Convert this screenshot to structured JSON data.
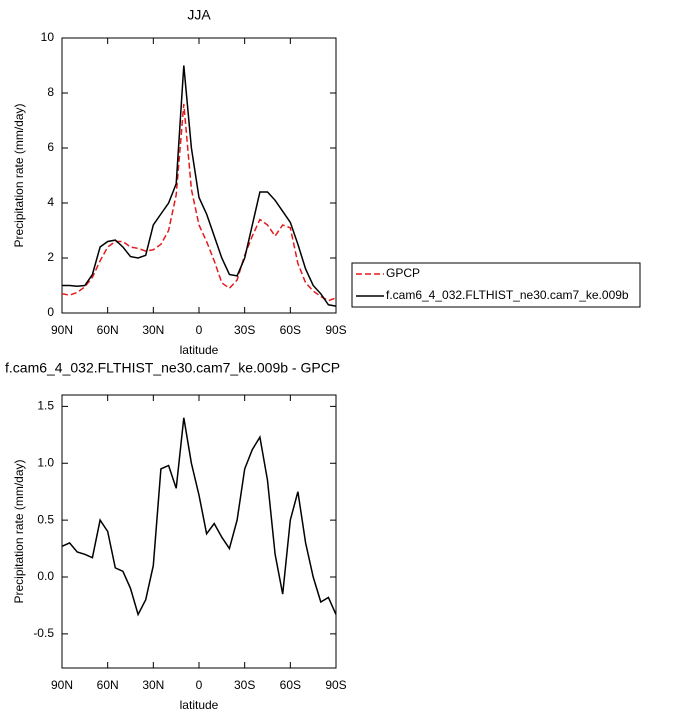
{
  "chart_data": [
    {
      "type": "line",
      "title": "JJA",
      "x_label": "latitude",
      "y_label": "Precipitation rate (mm/day)",
      "x": [
        90,
        85,
        80,
        75,
        70,
        65,
        60,
        55,
        50,
        45,
        40,
        35,
        30,
        25,
        20,
        15,
        10,
        5,
        0,
        -5,
        -10,
        -15,
        -20,
        -25,
        -30,
        -35,
        -40,
        -45,
        -50,
        -55,
        -60,
        -65,
        -70,
        -75,
        -80,
        -85,
        -90
      ],
      "xlim": [
        90,
        -90
      ],
      "xticks": [
        {
          "value": 90,
          "label": "90N"
        },
        {
          "value": 60,
          "label": "60N"
        },
        {
          "value": 30,
          "label": "30N"
        },
        0,
        {
          "value": -30,
          "label": "30S"
        },
        {
          "value": -60,
          "label": "60S"
        },
        {
          "value": -90,
          "label": "90S"
        }
      ],
      "ylim": [
        0,
        10
      ],
      "yticks": [
        0,
        2,
        4,
        6,
        8,
        10
      ],
      "legend": "right",
      "series": [
        {
          "name": "GPCP",
          "color": "#e41a1c",
          "style": "dashed",
          "values": [
            0.7,
            0.65,
            0.75,
            0.95,
            1.3,
            1.9,
            2.4,
            2.6,
            2.6,
            2.4,
            2.35,
            2.25,
            2.3,
            2.5,
            3.0,
            4.3,
            7.6,
            4.5,
            3.2,
            2.6,
            1.9,
            1.1,
            0.9,
            1.2,
            2.1,
            2.8,
            3.4,
            3.2,
            2.8,
            3.2,
            3.1,
            1.8,
            1.1,
            0.8,
            0.6,
            0.45,
            0.55
          ]
        },
        {
          "name": "f.cam6_4_032.FLTHIST_ne30.cam7_ke.009b",
          "color": "#000000",
          "style": "solid",
          "values": [
            1.0,
            1.0,
            0.97,
            1.0,
            1.4,
            2.4,
            2.6,
            2.65,
            2.4,
            2.05,
            2.0,
            2.1,
            3.2,
            3.6,
            4.0,
            4.7,
            9.0,
            6.0,
            4.2,
            3.6,
            2.8,
            2.0,
            1.4,
            1.35,
            2.0,
            3.2,
            4.4,
            4.4,
            4.1,
            3.7,
            3.3,
            2.5,
            1.6,
            1.0,
            0.7,
            0.3,
            0.25
          ]
        }
      ]
    },
    {
      "type": "line",
      "title": "f.cam6_4_032.FLTHIST_ne30.cam7_ke.009b - GPCP",
      "x_label": "latitude",
      "y_label": "Precipitation rate (mm/day)",
      "x": [
        90,
        85,
        80,
        75,
        70,
        65,
        60,
        55,
        50,
        45,
        40,
        35,
        30,
        25,
        20,
        15,
        10,
        5,
        0,
        -5,
        -10,
        -15,
        -20,
        -25,
        -30,
        -35,
        -40,
        -45,
        -50,
        -55,
        -60,
        -65,
        -70,
        -75,
        -80,
        -85,
        -90
      ],
      "xlim": [
        90,
        -90
      ],
      "xticks": [
        {
          "value": 90,
          "label": "90N"
        },
        {
          "value": 60,
          "label": "60N"
        },
        {
          "value": 30,
          "label": "30N"
        },
        0,
        {
          "value": -30,
          "label": "30S"
        },
        {
          "value": -60,
          "label": "60S"
        },
        {
          "value": -90,
          "label": "90S"
        }
      ],
      "ylim": [
        -0.8,
        1.6
      ],
      "yticks": [
        -0.5,
        {
          "value": 0,
          "label": "0.0"
        },
        0.5,
        {
          "value": 1,
          "label": "1.0"
        },
        1.5
      ],
      "series": [
        {
          "color": "#000000",
          "style": "solid",
          "values": [
            0.27,
            0.3,
            0.22,
            0.2,
            0.17,
            0.5,
            0.4,
            0.08,
            0.05,
            -0.1,
            -0.33,
            -0.2,
            0.1,
            0.95,
            0.98,
            0.78,
            1.4,
            1.0,
            0.72,
            0.38,
            0.47,
            0.35,
            0.25,
            0.5,
            0.95,
            1.12,
            1.23,
            0.85,
            0.2,
            -0.15,
            0.5,
            0.75,
            0.3,
            0.0,
            -0.22,
            -0.18,
            -0.33
          ]
        }
      ]
    }
  ]
}
